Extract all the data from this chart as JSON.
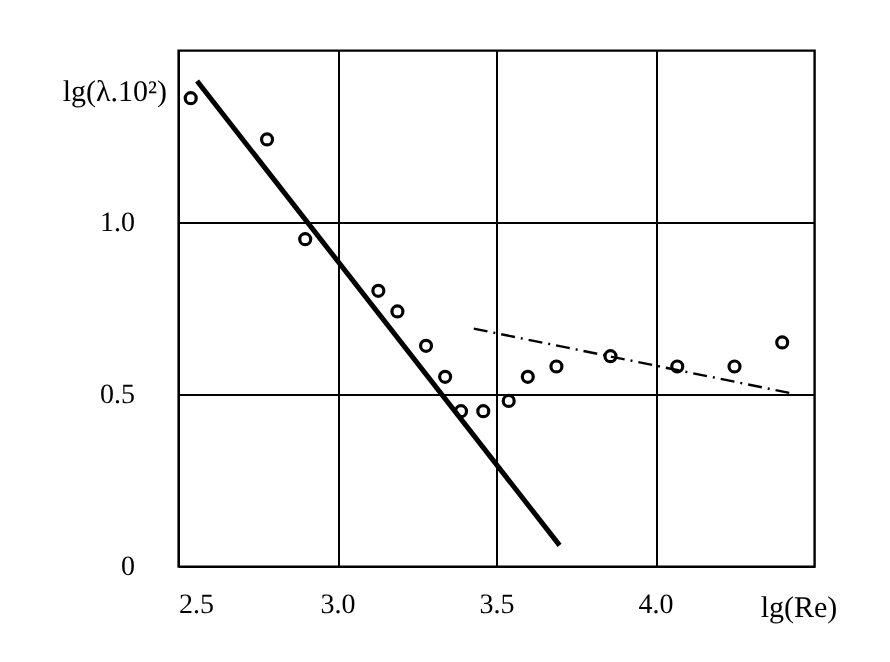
{
  "chart_data": {
    "type": "scatter",
    "xlabel": "lg(Re)",
    "ylabel": "lg(λ.10²)",
    "xlim": [
      2.5,
      4.5
    ],
    "ylim": [
      0,
      1.5
    ],
    "xticks": [
      2.5,
      {
        "value": 3,
        "label": "3.0"
      },
      3.5,
      {
        "value": 4,
        "label": "4.0"
      }
    ],
    "yticks": [
      0,
      0.5,
      {
        "value": 1,
        "label": "1.0"
      }
    ],
    "grid": true,
    "series": [
      {
        "marker": "circle",
        "color": "#000000",
        "x": [
          2.54,
          2.78,
          2.9,
          3.13,
          3.19,
          3.28,
          3.34,
          3.39,
          3.46,
          3.54,
          3.6,
          3.69,
          3.86,
          4.07,
          4.25,
          4.4
        ],
        "values": [
          1.36,
          1.24,
          0.95,
          0.8,
          0.74,
          0.64,
          0.55,
          0.45,
          0.45,
          0.48,
          0.55,
          0.58,
          0.61,
          0.58,
          0.58,
          0.65
        ]
      },
      {
        "type": "line",
        "line_style": "solid",
        "color": "#000000",
        "x": [
          2.56,
          3.7
        ],
        "values": [
          1.41,
          0.06
        ]
      },
      {
        "type": "line",
        "line_style": "dashed",
        "color": "#000000",
        "x": [
          3.43,
          4.44
        ],
        "values": [
          0.69,
          0.5
        ]
      }
    ]
  }
}
